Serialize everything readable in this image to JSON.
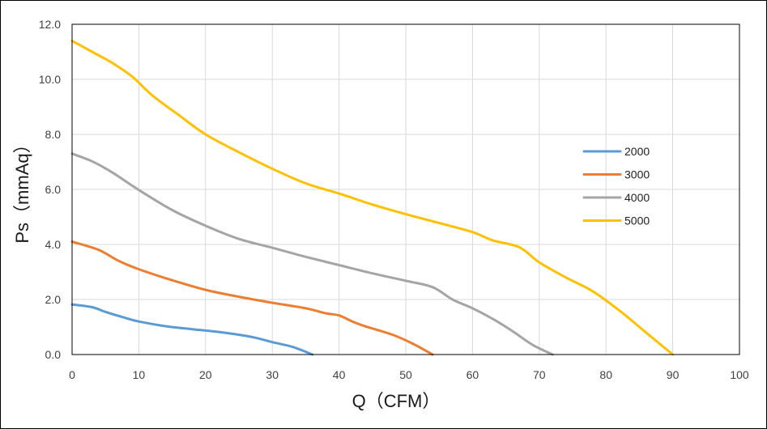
{
  "chart_data": {
    "type": "line",
    "title": "",
    "xlabel": "Q（CFM）",
    "ylabel": "Ps（mmAq）",
    "xlim": [
      0,
      100
    ],
    "ylim": [
      0,
      12
    ],
    "x_ticks": [
      0,
      10,
      20,
      30,
      40,
      50,
      60,
      70,
      80,
      90,
      100
    ],
    "x_tick_labels": [
      "0",
      "10",
      "20",
      "30",
      "40",
      "50",
      "60",
      "70",
      "80",
      "90",
      "100"
    ],
    "y_ticks": [
      0,
      2,
      4,
      6,
      8,
      10,
      12
    ],
    "y_tick_labels": [
      "0.0",
      "2.0",
      "4.0",
      "6.0",
      "8.0",
      "10.0",
      "12.0"
    ],
    "grid": true,
    "legend_position": "right",
    "series": [
      {
        "name": "2000",
        "color": "#5b9bd5",
        "points": [
          [
            0,
            1.82
          ],
          [
            3,
            1.72
          ],
          [
            5,
            1.55
          ],
          [
            8,
            1.33
          ],
          [
            10,
            1.2
          ],
          [
            14,
            1.03
          ],
          [
            18,
            0.92
          ],
          [
            22,
            0.82
          ],
          [
            26,
            0.68
          ],
          [
            28,
            0.58
          ],
          [
            30,
            0.45
          ],
          [
            33,
            0.28
          ],
          [
            36,
            0.0
          ]
        ]
      },
      {
        "name": "3000",
        "color": "#ed7d31",
        "points": [
          [
            0,
            4.1
          ],
          [
            4,
            3.8
          ],
          [
            7,
            3.4
          ],
          [
            10,
            3.1
          ],
          [
            15,
            2.7
          ],
          [
            20,
            2.35
          ],
          [
            25,
            2.1
          ],
          [
            30,
            1.88
          ],
          [
            35,
            1.68
          ],
          [
            38,
            1.5
          ],
          [
            40,
            1.42
          ],
          [
            42,
            1.2
          ],
          [
            44,
            1.02
          ],
          [
            48,
            0.72
          ],
          [
            51,
            0.4
          ],
          [
            54,
            0.0
          ]
        ]
      },
      {
        "name": "4000",
        "color": "#a5a5a5",
        "points": [
          [
            0,
            7.3
          ],
          [
            3,
            7.02
          ],
          [
            6,
            6.62
          ],
          [
            10,
            5.98
          ],
          [
            15,
            5.25
          ],
          [
            20,
            4.68
          ],
          [
            25,
            4.2
          ],
          [
            30,
            3.88
          ],
          [
            35,
            3.55
          ],
          [
            40,
            3.25
          ],
          [
            45,
            2.95
          ],
          [
            50,
            2.68
          ],
          [
            54,
            2.45
          ],
          [
            57,
            2.0
          ],
          [
            60,
            1.68
          ],
          [
            63,
            1.3
          ],
          [
            66,
            0.85
          ],
          [
            69,
            0.35
          ],
          [
            72,
            0.0
          ]
        ]
      },
      {
        "name": "5000",
        "color": "#ffc000",
        "points": [
          [
            0,
            11.4
          ],
          [
            3,
            11.0
          ],
          [
            6,
            10.6
          ],
          [
            9,
            10.1
          ],
          [
            12,
            9.42
          ],
          [
            16,
            8.7
          ],
          [
            20,
            8.0
          ],
          [
            25,
            7.35
          ],
          [
            30,
            6.75
          ],
          [
            35,
            6.22
          ],
          [
            40,
            5.85
          ],
          [
            45,
            5.45
          ],
          [
            50,
            5.1
          ],
          [
            55,
            4.78
          ],
          [
            60,
            4.45
          ],
          [
            63,
            4.15
          ],
          [
            67,
            3.9
          ],
          [
            70,
            3.35
          ],
          [
            74,
            2.8
          ],
          [
            78,
            2.3
          ],
          [
            82,
            1.6
          ],
          [
            86,
            0.8
          ],
          [
            90,
            0.0
          ]
        ]
      }
    ]
  }
}
